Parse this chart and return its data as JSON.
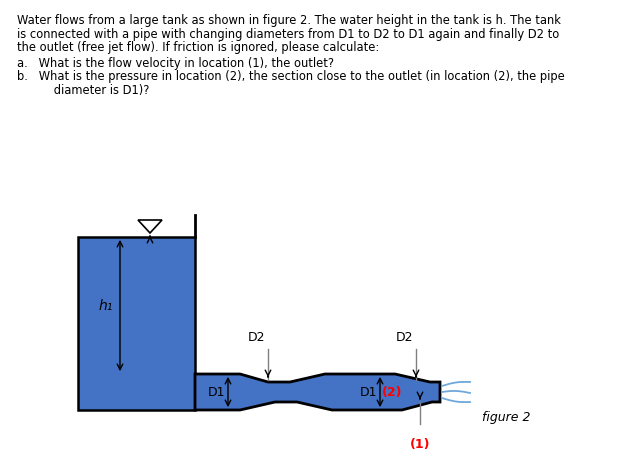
{
  "blue_color": "#4472C4",
  "black_color": "#000000",
  "red_color": "#FF0000",
  "jet_color": "#6fa8dc",
  "figure_label": "figure 2",
  "label_D1_left": "D1",
  "label_D2_left": "D2",
  "label_D1_right": "D1",
  "label_D2_right": "D2",
  "label_h1": "h₁",
  "label_1": "(1)",
  "label_2": "(2)",
  "text_lines": [
    "Water flows from a large tank as shown in figure 2. The water height in the tank is h. The tank",
    "is connected with a pipe with changing diameters from D1 to D2 to D1 again and finally D2 to",
    "the outlet (free jet flow). If friction is ignored, please calculate:"
  ],
  "qa": "a.   What is the flow velocity in location (1), the outlet?",
  "qb1": "b.   What is the pressure in location (2), the section close to the outlet (in location (2), the pipe",
  "qb2": "      diameter is D1)?"
}
